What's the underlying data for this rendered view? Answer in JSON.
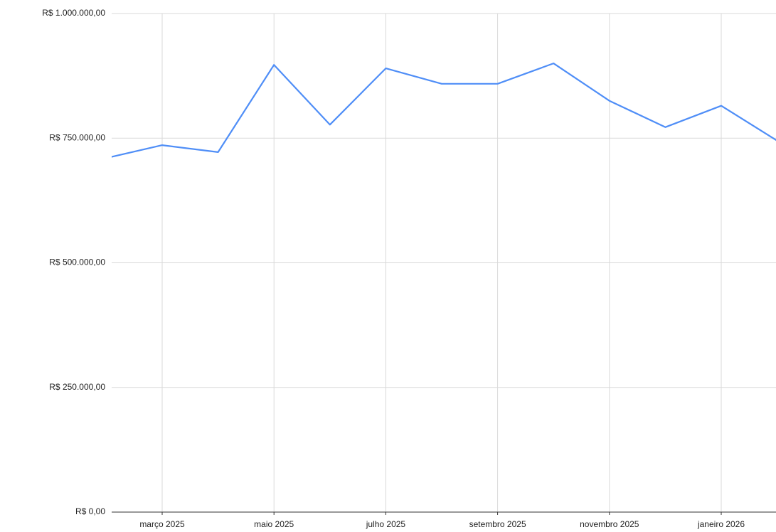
{
  "chart_data": {
    "type": "line",
    "categories": [
      null,
      "março 2025",
      null,
      "maio 2025",
      null,
      "julho 2025",
      null,
      "setembro 2025",
      null,
      "novembro 2025",
      null,
      "janeiro 2026",
      null
    ],
    "series": [
      {
        "color": "#4f8ef7",
        "values": [
          710000,
          736000,
          722000,
          897000,
          777000,
          890000,
          859000,
          859000,
          900000,
          825000,
          772000,
          815000,
          745000
        ]
      }
    ],
    "ylim": [
      0,
      1000000
    ],
    "yticks": [
      {
        "value": 0,
        "label": "R$ 0,00"
      },
      {
        "value": 250000,
        "label": "R$ 250.000,00"
      },
      {
        "value": 500000,
        "label": "R$ 500.000,00"
      },
      {
        "value": 750000,
        "label": "R$ 750.000,00"
      },
      {
        "value": 1000000,
        "label": "R$ 1.000.000,00"
      }
    ],
    "grid": true
  }
}
